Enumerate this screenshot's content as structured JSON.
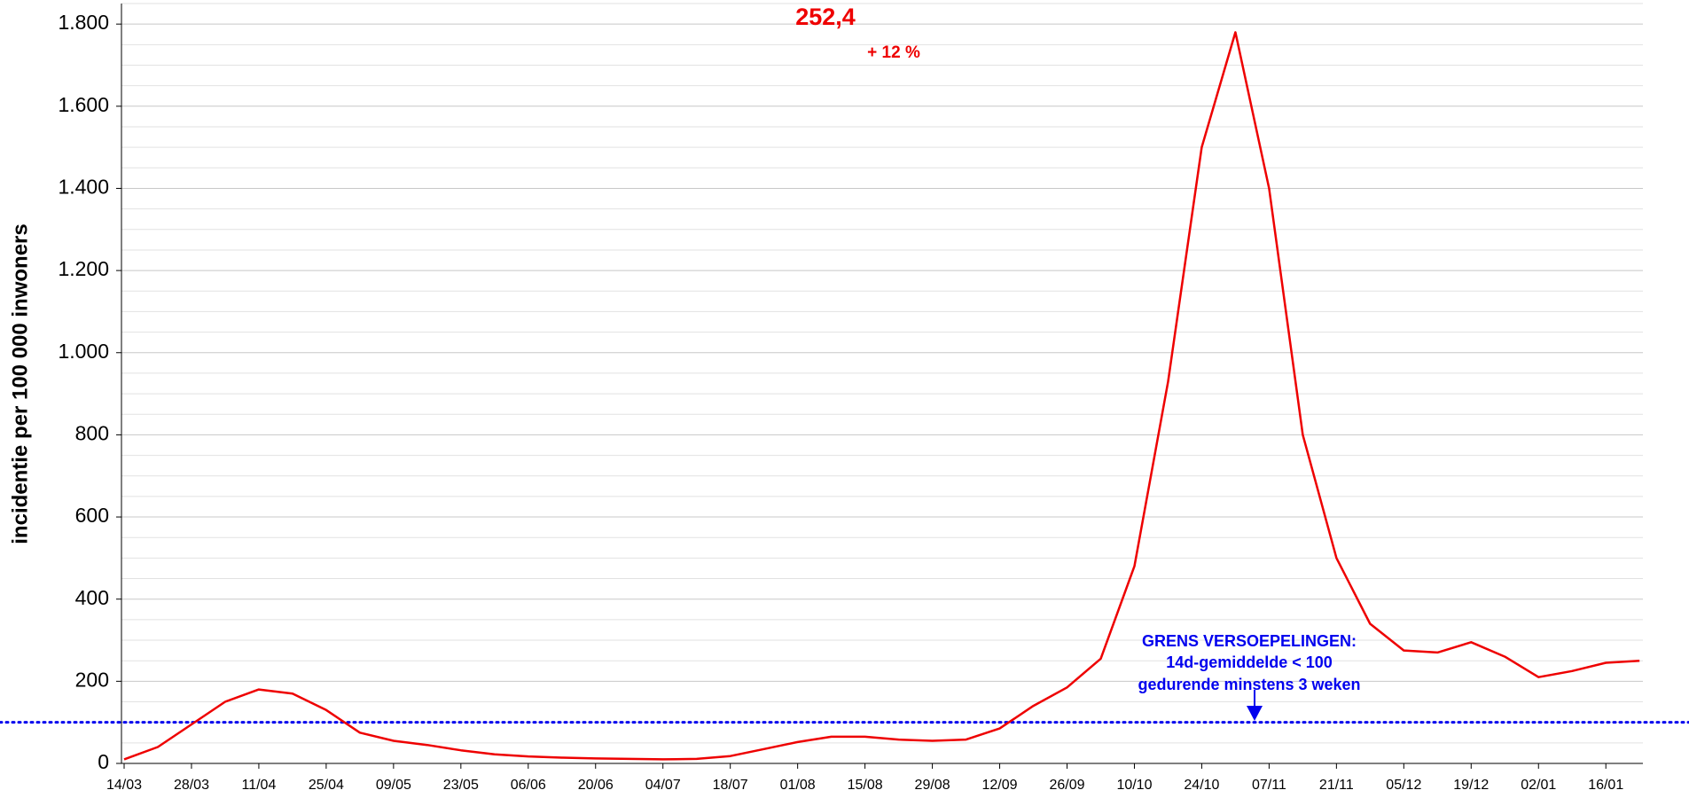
{
  "chart_data": {
    "type": "line",
    "y_label": "incidentie per 100 000 inwoners",
    "categories": [
      "14/03",
      null,
      "28/03",
      null,
      "11/04",
      null,
      "25/04",
      null,
      "09/05",
      null,
      "23/05",
      null,
      "06/06",
      null,
      "20/06",
      null,
      "04/07",
      null,
      "18/07",
      null,
      "01/08",
      null,
      "15/08",
      null,
      "29/08",
      null,
      "12/09",
      null,
      "26/09",
      null,
      "10/10",
      null,
      "24/10",
      null,
      "07/11",
      null,
      "21/11",
      null,
      "05/12",
      null,
      "19/12",
      null,
      "02/01",
      null,
      "16/01",
      null
    ],
    "series": [
      {
        "name": "incidentie",
        "color": "#ee0000",
        "values": [
          10,
          40,
          95,
          150,
          180,
          170,
          130,
          75,
          55,
          45,
          32,
          22,
          17,
          14,
          12,
          11,
          10,
          11,
          18,
          35,
          52,
          65,
          65,
          58,
          55,
          58,
          85,
          140,
          185,
          255,
          480,
          930,
          1500,
          1780,
          1400,
          800,
          500,
          340,
          275,
          270,
          295,
          260,
          210,
          225,
          245,
          250
        ]
      }
    ],
    "ylim": [
      0,
      1850
    ],
    "yticks": [
      {
        "value": 0,
        "label": "0"
      },
      {
        "value": 200,
        "label": "200"
      },
      {
        "value": 400,
        "label": "400"
      },
      {
        "value": 600,
        "label": "600"
      },
      {
        "value": 800,
        "label": "800"
      },
      {
        "value": 1000,
        "label": "1.000"
      },
      {
        "value": 1200,
        "label": "1.200"
      },
      {
        "value": 1400,
        "label": "1.400"
      },
      {
        "value": 1600,
        "label": "1.600"
      },
      {
        "value": 1800,
        "label": "1.800"
      }
    ],
    "minor_yticks": [
      50,
      100,
      150,
      250,
      300,
      350,
      450,
      500,
      550,
      650,
      700,
      750,
      850,
      900,
      950,
      1050,
      1100,
      1150,
      1250,
      1300,
      1350,
      1450,
      1500,
      1550,
      1650,
      1700,
      1750,
      1850
    ],
    "grid": true,
    "threshold": {
      "value": 100,
      "color": "#0000ee"
    },
    "annotations": {
      "current_value": "252,4",
      "change": "+ 12 %",
      "threshold_label": [
        "GRENS VERSOEPELINGEN:",
        "14d-gemiddelde < 100",
        "gedurende minstens 3 weken"
      ]
    }
  }
}
